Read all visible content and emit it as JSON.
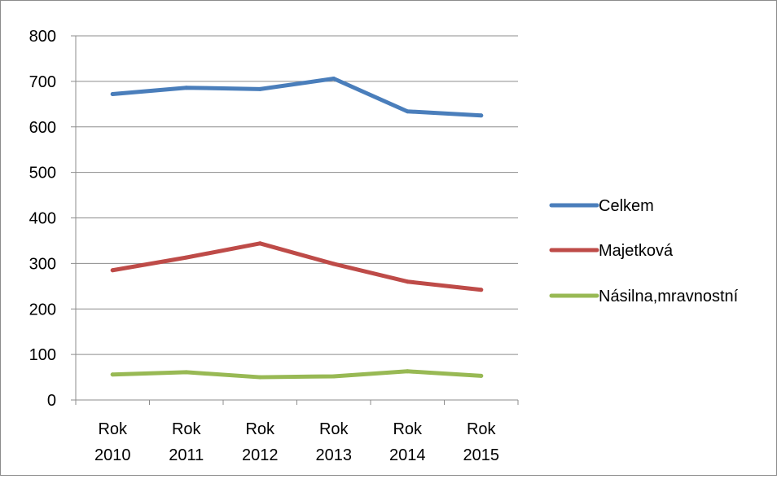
{
  "chart_data": {
    "type": "line",
    "categories": [
      [
        "Rok",
        "2010"
      ],
      [
        "Rok",
        "2011"
      ],
      [
        "Rok",
        "2012"
      ],
      [
        "Rok",
        "2013"
      ],
      [
        "Rok",
        "2014"
      ],
      [
        "Rok",
        "2015"
      ]
    ],
    "ylim": [
      0,
      800
    ],
    "yticks": [
      0,
      100,
      200,
      300,
      400,
      500,
      600,
      700,
      800
    ],
    "grid": true,
    "legend_position": "right",
    "series": [
      {
        "name": "Celkem",
        "color": "#4a7ebb",
        "values": [
          672,
          686,
          683,
          706,
          634,
          625
        ]
      },
      {
        "name": "Majetková",
        "color": "#be4b48",
        "values": [
          285,
          313,
          344,
          299,
          260,
          242
        ]
      },
      {
        "name": "Násilna,mravnostní",
        "color": "#98b954",
        "values": [
          56,
          61,
          50,
          52,
          63,
          53
        ]
      }
    ]
  }
}
